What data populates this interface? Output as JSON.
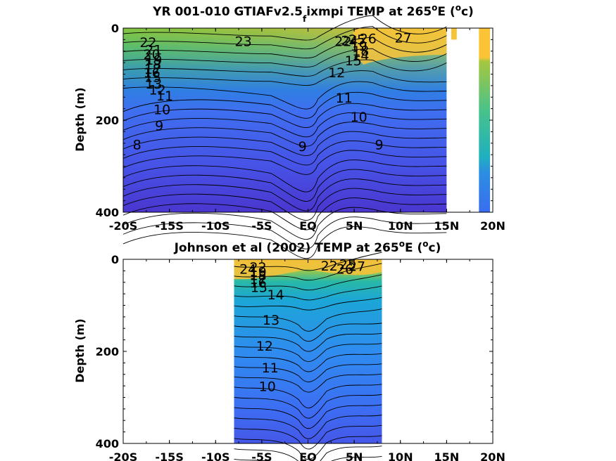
{
  "chart_data": [
    {
      "type": "contour",
      "title": "YR 001-010 GTIAFv2.5_fixmpi TEMP at 265°E (°c)",
      "title_parts": {
        "lead": "YR 001-010 GTIAFv2.5",
        "sub": "f",
        "tail": "ixmpi TEMP at 265",
        "deg1": "o",
        "after": "E (",
        "deg2": "o",
        "close": "c)"
      },
      "ylabel": "Depth (m)",
      "xlim": [
        -20,
        20
      ],
      "ylim": [
        0,
        400
      ],
      "yreverse": true,
      "data_extent_x": [
        -20,
        15
      ],
      "extra_strips": [
        {
          "x": [
            15.5,
            16.1
          ],
          "depth": [
            0,
            25
          ]
        },
        {
          "x": [
            18.5,
            19.7
          ],
          "depth": [
            0,
            400
          ]
        }
      ],
      "xticks": [
        -20,
        -15,
        -10,
        -5,
        0,
        5,
        10,
        15,
        20
      ],
      "xticklabels": [
        "-20S",
        "-15S",
        "-10S",
        "-5S",
        "EQ",
        "5N",
        "10N",
        "15N",
        "20N"
      ],
      "yticks": [
        0,
        200,
        400
      ],
      "yticklabels": [
        "0",
        "200",
        "400"
      ],
      "contour_levels": [
        8,
        9,
        10,
        11,
        12,
        13,
        14,
        15,
        16,
        17,
        18,
        19,
        20,
        21,
        22,
        23,
        24,
        25,
        26,
        27
      ],
      "contour_labels": [
        {
          "text": "22",
          "x": -17.3,
          "y": 32
        },
        {
          "text": "23",
          "x": -7.0,
          "y": 30
        },
        {
          "text": "21",
          "x": -16.7,
          "y": 48
        },
        {
          "text": "20",
          "x": -16.9,
          "y": 58
        },
        {
          "text": "19",
          "x": -16.7,
          "y": 70
        },
        {
          "text": "18",
          "x": -16.8,
          "y": 80
        },
        {
          "text": "17",
          "x": -16.8,
          "y": 90
        },
        {
          "text": "16",
          "x": -16.9,
          "y": 98
        },
        {
          "text": "15",
          "x": -16.8,
          "y": 108
        },
        {
          "text": "13",
          "x": -16.7,
          "y": 122
        },
        {
          "text": "12",
          "x": -16.3,
          "y": 135
        },
        {
          "text": "11",
          "x": -15.5,
          "y": 148
        },
        {
          "text": "10",
          "x": -15.8,
          "y": 178
        },
        {
          "text": "9",
          "x": -16.1,
          "y": 213
        },
        {
          "text": "8",
          "x": -18.5,
          "y": 254
        },
        {
          "text": "9",
          "x": -0.6,
          "y": 258
        },
        {
          "text": "9",
          "x": 7.7,
          "y": 254
        },
        {
          "text": "10",
          "x": 5.5,
          "y": 194
        },
        {
          "text": "11",
          "x": 3.9,
          "y": 153
        },
        {
          "text": "12",
          "x": 3.1,
          "y": 98
        },
        {
          "text": "15",
          "x": 4.9,
          "y": 72
        },
        {
          "text": "14",
          "x": 5.7,
          "y": 60
        },
        {
          "text": "18",
          "x": 5.7,
          "y": 50
        },
        {
          "text": "19",
          "x": 5.5,
          "y": 40
        },
        {
          "text": "22",
          "x": 3.8,
          "y": 30
        },
        {
          "text": "24",
          "x": 4.5,
          "y": 28
        },
        {
          "text": "25",
          "x": 5.3,
          "y": 26
        },
        {
          "text": "26",
          "x": 6.5,
          "y": 24
        },
        {
          "text": "27",
          "x": 10.3,
          "y": 22
        }
      ]
    },
    {
      "type": "contour",
      "title": "Johnson et al (2002) TEMP at 265°E (°c)",
      "title_parts": {
        "lead": "Johnson et al (2002) TEMP at 265",
        "deg1": "o",
        "after": "E (",
        "deg2": "o",
        "close": "c)"
      },
      "ylabel": "Depth (m)",
      "xlim": [
        -20,
        20
      ],
      "ylim": [
        0,
        400
      ],
      "yreverse": true,
      "data_extent_x": [
        -8,
        8
      ],
      "xticks": [
        -20,
        -15,
        -10,
        -5,
        0,
        5,
        10,
        15,
        20
      ],
      "xticklabels": [
        "-20S",
        "-15S",
        "-10S",
        "-5S",
        "EQ",
        "5N",
        "10N",
        "15N",
        "20N"
      ],
      "yticks": [
        0,
        200,
        400
      ],
      "yticklabels": [
        "0",
        "200",
        "400"
      ],
      "contour_levels": [
        10,
        11,
        12,
        13,
        14,
        15,
        16,
        17,
        18,
        19,
        20,
        21,
        22,
        23,
        24,
        25,
        26,
        27
      ],
      "contour_labels": [
        {
          "text": "24",
          "x": -6.5,
          "y": 22
        },
        {
          "text": "22",
          "x": -5.4,
          "y": 18
        },
        {
          "text": "19",
          "x": -5.4,
          "y": 28
        },
        {
          "text": "18",
          "x": -5.4,
          "y": 36
        },
        {
          "text": "17",
          "x": -5.4,
          "y": 44
        },
        {
          "text": "16",
          "x": -5.4,
          "y": 52
        },
        {
          "text": "15",
          "x": -5.3,
          "y": 62
        },
        {
          "text": "14",
          "x": -3.5,
          "y": 78
        },
        {
          "text": "13",
          "x": -4.0,
          "y": 133
        },
        {
          "text": "12",
          "x": -4.7,
          "y": 189
        },
        {
          "text": "11",
          "x": -4.1,
          "y": 237
        },
        {
          "text": "10",
          "x": -4.4,
          "y": 277
        },
        {
          "text": "22",
          "x": 2.3,
          "y": 15
        },
        {
          "text": "25",
          "x": 4.3,
          "y": 12
        },
        {
          "text": "26",
          "x": 4.0,
          "y": 22
        },
        {
          "text": "27",
          "x": 5.3,
          "y": 16
        }
      ]
    }
  ]
}
